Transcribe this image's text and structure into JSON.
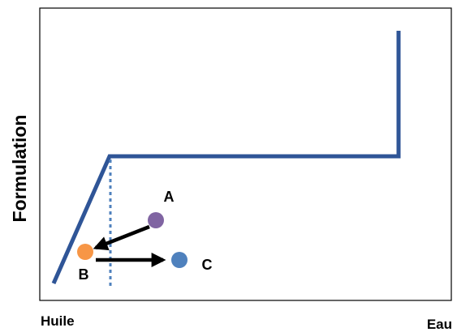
{
  "axes": {
    "y_label": "Formulation",
    "x_left_label": "Huile",
    "x_right_label": "Eau"
  },
  "points": [
    {
      "id": "A",
      "label": "A",
      "color": "#8064a2"
    },
    {
      "id": "B",
      "label": "B",
      "color": "#f79646"
    },
    {
      "id": "C",
      "label": "C",
      "color": "#4f81bd"
    }
  ],
  "arrows": [
    {
      "from": "A",
      "to": "B"
    },
    {
      "from": "B",
      "to": "C"
    }
  ],
  "colors": {
    "curve": "#2f5597",
    "dotted_line": "#4f81bd",
    "frame": "#000000",
    "arrow": "#000000"
  }
}
